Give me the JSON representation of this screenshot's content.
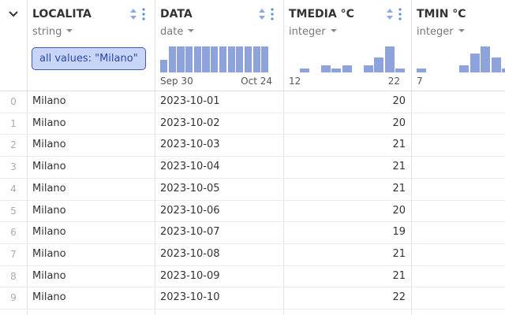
{
  "columns": [
    {
      "name": "LOCALITA",
      "type": "string",
      "filter": "all values: \"Milano\""
    },
    {
      "name": "DATA",
      "type": "date",
      "histogram": [
        1,
        2,
        2,
        2,
        2,
        2,
        2,
        2,
        2,
        2,
        2,
        2,
        2
      ],
      "axis_min": "Sep 30",
      "axis_max": "Oct 24"
    },
    {
      "name": "TMEDIA °C",
      "type": "integer",
      "histogram": [
        0,
        1,
        0,
        2,
        1,
        2,
        0,
        2,
        4,
        7,
        1
      ],
      "axis_min": "12",
      "axis_max": "22"
    },
    {
      "name": "TMIN °C",
      "type": "integer",
      "histogram": [
        1,
        0,
        0,
        0,
        2,
        5,
        7,
        4,
        1
      ],
      "axis_min": "7"
    }
  ],
  "rows": [
    [
      "0",
      "Milano",
      "2023-10-01",
      "20"
    ],
    [
      "1",
      "Milano",
      "2023-10-02",
      "20"
    ],
    [
      "2",
      "Milano",
      "2023-10-03",
      "21"
    ],
    [
      "3",
      "Milano",
      "2023-10-04",
      "21"
    ],
    [
      "4",
      "Milano",
      "2023-10-05",
      "21"
    ],
    [
      "5",
      "Milano",
      "2023-10-06",
      "20"
    ],
    [
      "6",
      "Milano",
      "2023-10-07",
      "19"
    ],
    [
      "7",
      "Milano",
      "2023-10-08",
      "21"
    ],
    [
      "8",
      "Milano",
      "2023-10-09",
      "21"
    ],
    [
      "9",
      "Milano",
      "2023-10-10",
      "22"
    ]
  ]
}
